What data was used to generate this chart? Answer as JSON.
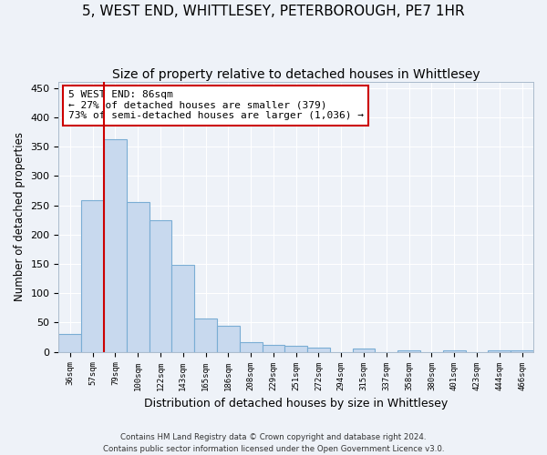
{
  "title1": "5, WEST END, WHITTLESEY, PETERBOROUGH, PE7 1HR",
  "title2": "Size of property relative to detached houses in Whittlesey",
  "xlabel": "Distribution of detached houses by size in Whittlesey",
  "ylabel": "Number of detached properties",
  "bar_labels": [
    "36sqm",
    "57sqm",
    "79sqm",
    "100sqm",
    "122sqm",
    "143sqm",
    "165sqm",
    "186sqm",
    "208sqm",
    "229sqm",
    "251sqm",
    "272sqm",
    "294sqm",
    "315sqm",
    "337sqm",
    "358sqm",
    "380sqm",
    "401sqm",
    "423sqm",
    "444sqm",
    "466sqm"
  ],
  "bar_values": [
    30,
    258,
    362,
    255,
    224,
    148,
    57,
    44,
    17,
    12,
    10,
    7,
    0,
    5,
    0,
    3,
    0,
    3,
    0,
    3,
    3
  ],
  "bar_color": "#c8d9ee",
  "bar_edge_color": "#7aadd4",
  "annotation_text": "5 WEST END: 86sqm\n← 27% of detached houses are smaller (379)\n73% of semi-detached houses are larger (1,036) →",
  "annotation_box_color": "white",
  "annotation_box_edge_color": "#cc0000",
  "vline_x_index": 1.5,
  "vline_color": "#cc0000",
  "ylim": [
    0,
    460
  ],
  "yticks": [
    0,
    50,
    100,
    150,
    200,
    250,
    300,
    350,
    400,
    450
  ],
  "footer": "Contains HM Land Registry data © Crown copyright and database right 2024.\nContains public sector information licensed under the Open Government Licence v3.0.",
  "background_color": "#eef2f8",
  "grid_color": "white",
  "title1_fontsize": 11,
  "title2_fontsize": 10,
  "xlabel_fontsize": 9,
  "ylabel_fontsize": 8.5
}
